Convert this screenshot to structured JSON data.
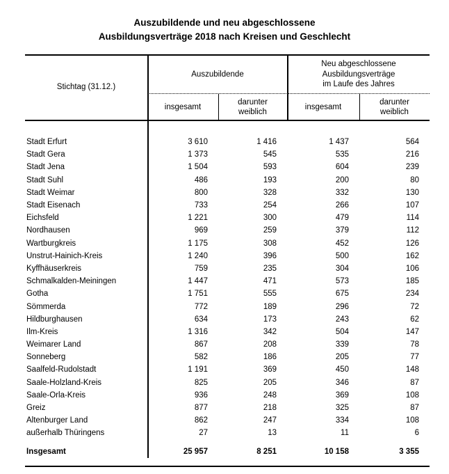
{
  "title": {
    "line1": "Auszubildende und neu abgeschlossene",
    "line2": "Ausbildungsverträge 2018 nach Kreisen und Geschlecht"
  },
  "colors": {
    "text": "#000000",
    "background": "#ffffff",
    "rules": "#000000"
  },
  "table": {
    "header": {
      "corner": "Stichtag (31.12.)",
      "group1_label": "Auszubildende",
      "group2_lines": [
        "Neu abgeschlossene",
        "Ausbildungsverträge",
        "im Laufe des Jahres"
      ],
      "sub_insgesamt": "insgesamt",
      "sub_darunter_line1": "darunter",
      "sub_darunter_line2": "weiblich"
    },
    "rows": [
      {
        "label": "Stadt Erfurt",
        "values": [
          "3 610",
          "1 416",
          "1 437",
          "564"
        ]
      },
      {
        "label": "Stadt Gera",
        "values": [
          "1 373",
          "545",
          "535",
          "216"
        ]
      },
      {
        "label": "Stadt Jena",
        "values": [
          "1 504",
          "593",
          "604",
          "239"
        ]
      },
      {
        "label": "Stadt Suhl",
        "values": [
          "486",
          "193",
          "200",
          "80"
        ]
      },
      {
        "label": "Stadt Weimar",
        "values": [
          "800",
          "328",
          "332",
          "130"
        ]
      },
      {
        "label": "Stadt Eisenach",
        "values": [
          "733",
          "254",
          "266",
          "107"
        ]
      },
      {
        "label": "Eichsfeld",
        "values": [
          "1 221",
          "300",
          "479",
          "114"
        ]
      },
      {
        "label": "Nordhausen",
        "values": [
          "969",
          "259",
          "379",
          "112"
        ]
      },
      {
        "label": "Wartburgkreis",
        "values": [
          "1 175",
          "308",
          "452",
          "126"
        ]
      },
      {
        "label": "Unstrut-Hainich-Kreis",
        "values": [
          "1 240",
          "396",
          "500",
          "162"
        ]
      },
      {
        "label": "Kyffhäuserkreis",
        "values": [
          "759",
          "235",
          "304",
          "106"
        ]
      },
      {
        "label": "Schmalkalden-Meiningen",
        "values": [
          "1 447",
          "471",
          "573",
          "185"
        ]
      },
      {
        "label": "Gotha",
        "values": [
          "1 751",
          "555",
          "675",
          "234"
        ]
      },
      {
        "label": "Sömmerda",
        "values": [
          "772",
          "189",
          "296",
          "72"
        ]
      },
      {
        "label": "Hildburghausen",
        "values": [
          "634",
          "173",
          "243",
          "62"
        ]
      },
      {
        "label": "Ilm-Kreis",
        "values": [
          "1 316",
          "342",
          "504",
          "147"
        ]
      },
      {
        "label": "Weimarer Land",
        "values": [
          "867",
          "208",
          "339",
          "78"
        ]
      },
      {
        "label": "Sonneberg",
        "values": [
          "582",
          "186",
          "205",
          "77"
        ]
      },
      {
        "label": "Saalfeld-Rudolstadt",
        "values": [
          "1 191",
          "369",
          "450",
          "148"
        ]
      },
      {
        "label": "Saale-Holzland-Kreis",
        "values": [
          "825",
          "205",
          "346",
          "87"
        ]
      },
      {
        "label": "Saale-Orla-Kreis",
        "values": [
          "936",
          "248",
          "369",
          "108"
        ]
      },
      {
        "label": "Greiz",
        "values": [
          "877",
          "218",
          "325",
          "87"
        ]
      },
      {
        "label": "Altenburger Land",
        "values": [
          "862",
          "247",
          "334",
          "108"
        ]
      },
      {
        "label": "außerhalb Thüringens",
        "values": [
          "27",
          "13",
          "11",
          "6"
        ]
      }
    ],
    "total": {
      "label": "Insgesamt",
      "values": [
        "25 957",
        "8 251",
        "10 158",
        "3 355"
      ]
    }
  }
}
